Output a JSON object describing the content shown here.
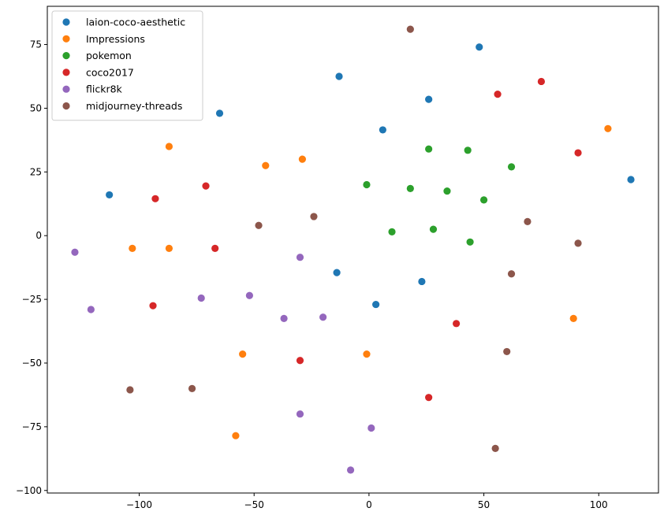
{
  "chart_data": {
    "type": "scatter",
    "title": "",
    "xlabel": "",
    "ylabel": "",
    "xlim": [
      -140,
      126
    ],
    "ylim": [
      -101,
      90
    ],
    "x_ticks": [
      -100,
      -50,
      0,
      50,
      100
    ],
    "y_ticks": [
      -100,
      -75,
      -50,
      -25,
      0,
      25,
      50,
      75
    ],
    "x_tick_labels": [
      "−100",
      "−50",
      "0",
      "50",
      "100"
    ],
    "y_tick_labels": [
      "−100",
      "−75",
      "−50",
      "−25",
      "0",
      "25",
      "50",
      "75"
    ],
    "grid": false,
    "legend_position": "top-left",
    "series": [
      {
        "name": "laion-coco-aesthetic",
        "color": "#1f77b4",
        "points": [
          [
            48,
            74
          ],
          [
            -13,
            62.5
          ],
          [
            26,
            53.5
          ],
          [
            6,
            41.5
          ],
          [
            -65,
            48
          ],
          [
            -113,
            16
          ],
          [
            114,
            22
          ],
          [
            -14,
            -14.5
          ],
          [
            3,
            -27
          ],
          [
            23,
            -18
          ]
        ]
      },
      {
        "name": "Impressions",
        "color": "#ff7f0e",
        "points": [
          [
            -87,
            35
          ],
          [
            -45,
            27.5
          ],
          [
            -29,
            30
          ],
          [
            -103,
            -5
          ],
          [
            -87,
            -5
          ],
          [
            -55,
            -46.5
          ],
          [
            -1,
            -46.5
          ],
          [
            -58,
            -78.5
          ],
          [
            89,
            -32.5
          ],
          [
            104,
            42
          ]
        ]
      },
      {
        "name": "pokemon",
        "color": "#2ca02c",
        "points": [
          [
            26,
            34
          ],
          [
            43,
            33.5
          ],
          [
            62,
            27
          ],
          [
            -1,
            20
          ],
          [
            18,
            18.5
          ],
          [
            34,
            17.5
          ],
          [
            50,
            14
          ],
          [
            10,
            1.5
          ],
          [
            28,
            2.5
          ],
          [
            44,
            -2.5
          ]
        ]
      },
      {
        "name": "coco2017",
        "color": "#d62728",
        "points": [
          [
            56,
            55.5
          ],
          [
            75,
            60.5
          ],
          [
            91,
            32.5
          ],
          [
            -93,
            14.5
          ],
          [
            -71,
            19.5
          ],
          [
            -67,
            -5
          ],
          [
            -94,
            -27.5
          ],
          [
            38,
            -34.5
          ],
          [
            -30,
            -49
          ],
          [
            26,
            -63.5
          ]
        ]
      },
      {
        "name": "flickr8k",
        "color": "#9467bd",
        "points": [
          [
            -128,
            -6.5
          ],
          [
            -121,
            -29
          ],
          [
            -73,
            -24.5
          ],
          [
            -52,
            -23.5
          ],
          [
            -30,
            -8.5
          ],
          [
            -37,
            -32.5
          ],
          [
            -20,
            -32
          ],
          [
            -30,
            -70
          ],
          [
            1,
            -75.5
          ],
          [
            -8,
            -92
          ]
        ]
      },
      {
        "name": "midjourney-threads",
        "color": "#8c564b",
        "points": [
          [
            18,
            81
          ],
          [
            -24,
            7.5
          ],
          [
            -48,
            4
          ],
          [
            69,
            5.5
          ],
          [
            91,
            -3
          ],
          [
            62,
            -15
          ],
          [
            60,
            -45.5
          ],
          [
            -104,
            -60.5
          ],
          [
            -77,
            -60
          ],
          [
            55,
            -83.5
          ]
        ]
      }
    ]
  }
}
